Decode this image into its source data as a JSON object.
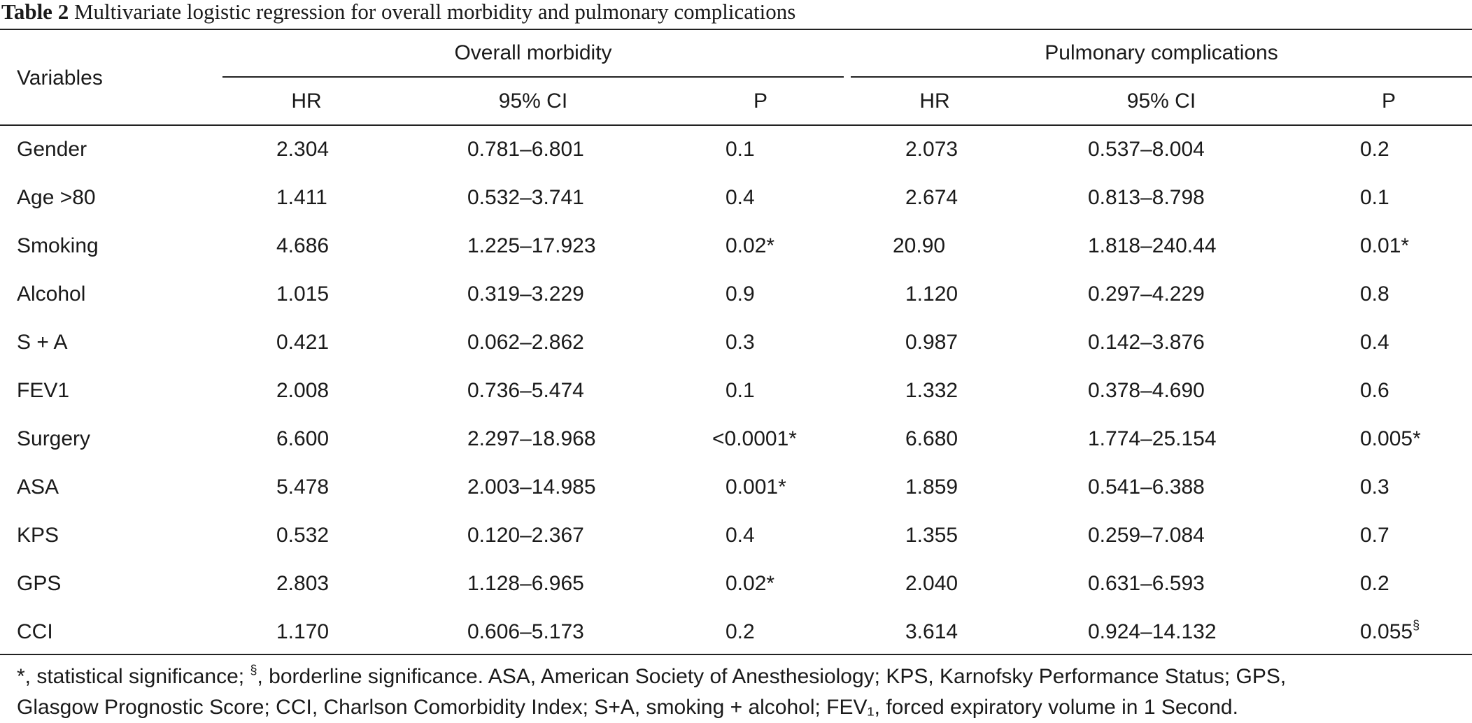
{
  "caption": {
    "label": "Table 2",
    "text": "Multivariate logistic regression for overall morbidity and pulmonary complications"
  },
  "header": {
    "variables": "Variables",
    "group1": "Overall morbidity",
    "group2": "Pulmonary complications",
    "cols": [
      "HR",
      "95% CI",
      "P",
      "HR",
      "95% CI",
      "P"
    ]
  },
  "rows": [
    {
      "variable": "Gender",
      "hr1": "2.304",
      "ci1": "0.781–6.801",
      "p1": "0.1",
      "hr2": "2.073",
      "ci2": "0.537–8.004",
      "p2": "0.2"
    },
    {
      "variable": "Age >80",
      "hr1": "1.411",
      "ci1": "0.532–3.741",
      "p1": "0.4",
      "hr2": "2.674",
      "ci2": "0.813–8.798",
      "p2": "0.1"
    },
    {
      "variable": "Smoking",
      "hr1": "4.686",
      "ci1": "1.225–17.923",
      "p1": "0.02*",
      "hr2": "20.90",
      "ci2": "1.818–240.44",
      "p2": "0.01*"
    },
    {
      "variable": "Alcohol",
      "hr1": "1.015",
      "ci1": "0.319–3.229",
      "p1": "0.9",
      "hr2": "1.120",
      "ci2": "0.297–4.229",
      "p2": "0.8"
    },
    {
      "variable": "S + A",
      "hr1": "0.421",
      "ci1": "0.062–2.862",
      "p1": "0.3",
      "hr2": "0.987",
      "ci2": "0.142–3.876",
      "p2": "0.4"
    },
    {
      "variable": "FEV1",
      "hr1": "2.008",
      "ci1": "0.736–5.474",
      "p1": "0.1",
      "hr2": "1.332",
      "ci2": "0.378–4.690",
      "p2": "0.6"
    },
    {
      "variable": "Surgery",
      "hr1": "6.600",
      "ci1": "2.297–18.968",
      "p1": "<0.0001*",
      "hr2": "6.680",
      "ci2": "1.774–25.154",
      "p2": "0.005*"
    },
    {
      "variable": "ASA",
      "hr1": "5.478",
      "ci1": "2.003–14.985",
      "p1": "0.001*",
      "hr2": "1.859",
      "ci2": "0.541–6.388",
      "p2": "0.3"
    },
    {
      "variable": "KPS",
      "hr1": "0.532",
      "ci1": "0.120–2.367",
      "p1": "0.4",
      "hr2": "1.355",
      "ci2": "0.259–7.084",
      "p2": "0.7"
    },
    {
      "variable": "GPS",
      "hr1": "2.803",
      "ci1": "1.128–6.965",
      "p1": "0.02*",
      "hr2": "2.040",
      "ci2": "0.631–6.593",
      "p2": "0.2"
    },
    {
      "variable": "CCI",
      "hr1": "1.170",
      "ci1": "0.606–5.173",
      "p1": "0.2",
      "hr2": "3.614",
      "ci2": "0.924–14.132",
      "p2": "0.055",
      "p2_sup": "§"
    }
  ],
  "footnote": {
    "part1": "*, statistical significance; ",
    "sup": "§",
    "part2": ", borderline significance. ASA, American Society of Anesthesiology; KPS, Karnofsky Performance Status; GPS,",
    "line2": "Glasgow Prognostic Score; CCI, Charlson Comorbidity Index; S+A, smoking + alcohol; FEV₁, forced expiratory volume in 1 Second."
  }
}
